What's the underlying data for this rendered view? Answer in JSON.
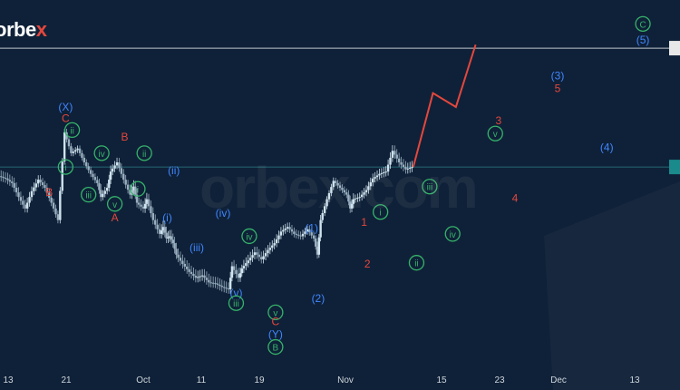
{
  "brand": {
    "prefix": "orbe",
    "accent": "x"
  },
  "watermark": "orbex.com",
  "colors": {
    "background": "#0f2138",
    "axis_band": "#0f2138",
    "candle_up": "#cfe3ee",
    "candle_down": "#9ab0c0",
    "label_red": "#e5473d",
    "label_blue": "#3f86ff",
    "label_green": "#36b36b",
    "projection": "#e5473d",
    "price_line": "#bfc5cc",
    "current_line": "#2a7f86"
  },
  "chart_data": {
    "type": "candlestick",
    "title": "",
    "xlabel": "",
    "ylabel": "",
    "x_ticks": [
      "13",
      "21",
      "Oct",
      "11",
      "19",
      "Nov",
      "15",
      "23",
      "Dec",
      "13"
    ],
    "price_path": [
      [
        0,
        58
      ],
      [
        2,
        56
      ],
      [
        4,
        52
      ],
      [
        6,
        40
      ],
      [
        8,
        30
      ],
      [
        10,
        45
      ],
      [
        12,
        55
      ],
      [
        14,
        48
      ],
      [
        16,
        35
      ],
      [
        18,
        20
      ],
      [
        20,
        96
      ],
      [
        22,
        78
      ],
      [
        24,
        82
      ],
      [
        26,
        70
      ],
      [
        28,
        60
      ],
      [
        30,
        52
      ],
      [
        31,
        40
      ],
      [
        33,
        48
      ],
      [
        34,
        62
      ],
      [
        36,
        70
      ],
      [
        38,
        55
      ],
      [
        40,
        42
      ],
      [
        41,
        49
      ],
      [
        42,
        35
      ],
      [
        44,
        30
      ],
      [
        45,
        38
      ],
      [
        47,
        20
      ],
      [
        49,
        8
      ],
      [
        50,
        14
      ],
      [
        51,
        4
      ],
      [
        52,
        6
      ],
      [
        53,
        0
      ],
      [
        54,
        -10
      ],
      [
        56,
        -18
      ],
      [
        58,
        -25
      ],
      [
        60,
        -30
      ],
      [
        62,
        -28
      ],
      [
        64,
        -34
      ],
      [
        66,
        -35
      ],
      [
        68,
        -38
      ],
      [
        70,
        -40
      ],
      [
        71,
        -20
      ],
      [
        73,
        -30
      ],
      [
        74,
        -22
      ],
      [
        76,
        -15
      ],
      [
        78,
        -8
      ],
      [
        80,
        -14
      ],
      [
        82,
        -6
      ],
      [
        84,
        0
      ],
      [
        86,
        10
      ],
      [
        88,
        14
      ],
      [
        90,
        8
      ],
      [
        92,
        6
      ],
      [
        94,
        12
      ],
      [
        96,
        4
      ],
      [
        97,
        -10
      ],
      [
        98,
        20
      ],
      [
        100,
        38
      ],
      [
        102,
        54
      ],
      [
        104,
        48
      ],
      [
        106,
        42
      ],
      [
        107,
        30
      ],
      [
        108,
        38
      ],
      [
        110,
        40
      ],
      [
        112,
        46
      ],
      [
        114,
        56
      ],
      [
        116,
        60
      ],
      [
        118,
        62
      ],
      [
        120,
        80
      ],
      [
        122,
        70
      ],
      [
        124,
        64
      ],
      [
        126,
        66
      ]
    ],
    "projection_path": [
      [
        126,
        66
      ],
      [
        132,
        130
      ],
      [
        139,
        118
      ],
      [
        145,
        172
      ]
    ],
    "wave_labels": [
      {
        "text": "(X)",
        "x": 20,
        "y": 118,
        "color": "blue"
      },
      {
        "text": "C",
        "x": 20,
        "y": 108,
        "color": "red"
      },
      {
        "text": "ii",
        "x": 22,
        "y": 98,
        "color": "green",
        "circled": true
      },
      {
        "text": "i",
        "x": 20,
        "y": 66,
        "color": "green",
        "circled": true
      },
      {
        "text": "iv",
        "x": 31,
        "y": 78,
        "color": "green",
        "circled": true
      },
      {
        "text": "B",
        "x": 15,
        "y": 44,
        "color": "red"
      },
      {
        "text": "iii",
        "x": 27,
        "y": 42,
        "color": "green",
        "circled": true
      },
      {
        "text": "v",
        "x": 35,
        "y": 34,
        "color": "green",
        "circled": true
      },
      {
        "text": "A",
        "x": 35,
        "y": 22,
        "color": "red"
      },
      {
        "text": "B",
        "x": 38,
        "y": 92,
        "color": "red"
      },
      {
        "text": "ii",
        "x": 44,
        "y": 78,
        "color": "green",
        "circled": true
      },
      {
        "text": "i",
        "x": 42,
        "y": 47,
        "color": "green",
        "circled": true
      },
      {
        "text": "(ii)",
        "x": 53,
        "y": 63,
        "color": "blue"
      },
      {
        "text": "(i)",
        "x": 51,
        "y": 22,
        "color": "blue"
      },
      {
        "text": "(iv)",
        "x": 68,
        "y": 26,
        "color": "blue"
      },
      {
        "text": "iv",
        "x": 76,
        "y": 6,
        "color": "green",
        "circled": true
      },
      {
        "text": "(iii)",
        "x": 60,
        "y": -4,
        "color": "blue"
      },
      {
        "text": "(v)",
        "x": 72,
        "y": -43,
        "color": "blue"
      },
      {
        "text": "iii",
        "x": 72,
        "y": -52,
        "color": "green",
        "circled": true
      },
      {
        "text": "v",
        "x": 84,
        "y": -60,
        "color": "green",
        "circled": true
      },
      {
        "text": "C",
        "x": 84,
        "y": -68,
        "color": "red"
      },
      {
        "text": "(Y)",
        "x": 84,
        "y": -79,
        "color": "blue"
      },
      {
        "text": "B",
        "x": 84,
        "y": -90,
        "color": "green",
        "circled": true
      },
      {
        "text": "(1)",
        "x": 95,
        "y": 13,
        "color": "blue"
      },
      {
        "text": "(2)",
        "x": 97,
        "y": -48,
        "color": "blue"
      },
      {
        "text": "1",
        "x": 111,
        "y": 18,
        "color": "red"
      },
      {
        "text": "2",
        "x": 112,
        "y": -18,
        "color": "red"
      },
      {
        "text": "i",
        "x": 116,
        "y": 27,
        "color": "green",
        "circled": true
      },
      {
        "text": "ii",
        "x": 127,
        "y": -17,
        "color": "green",
        "circled": true
      },
      {
        "text": "iii",
        "x": 131,
        "y": 49,
        "color": "green",
        "circled": true
      },
      {
        "text": "iv",
        "x": 138,
        "y": 8,
        "color": "green",
        "circled": true
      },
      {
        "text": "3",
        "x": 152,
        "y": 106,
        "color": "red"
      },
      {
        "text": "v",
        "x": 151,
        "y": 95,
        "color": "green",
        "circled": true
      },
      {
        "text": "4",
        "x": 157,
        "y": 39,
        "color": "red"
      },
      {
        "text": "(3)",
        "x": 170,
        "y": 145,
        "color": "blue"
      },
      {
        "text": "5",
        "x": 170,
        "y": 134,
        "color": "red"
      },
      {
        "text": "(4)",
        "x": 185,
        "y": 83,
        "color": "blue"
      },
      {
        "text": "C",
        "x": 196,
        "y": 190,
        "color": "green",
        "circled": true
      },
      {
        "text": "(5)",
        "x": 196,
        "y": 176,
        "color": "blue"
      }
    ],
    "y_range": [
      -110,
      195
    ],
    "x_range": [
      0,
      204
    ],
    "horizontal_lines": [
      {
        "name": "resistance",
        "y": 169,
        "color": "price_line"
      },
      {
        "name": "current",
        "y": 66,
        "color": "current_line"
      }
    ],
    "grid": false
  }
}
